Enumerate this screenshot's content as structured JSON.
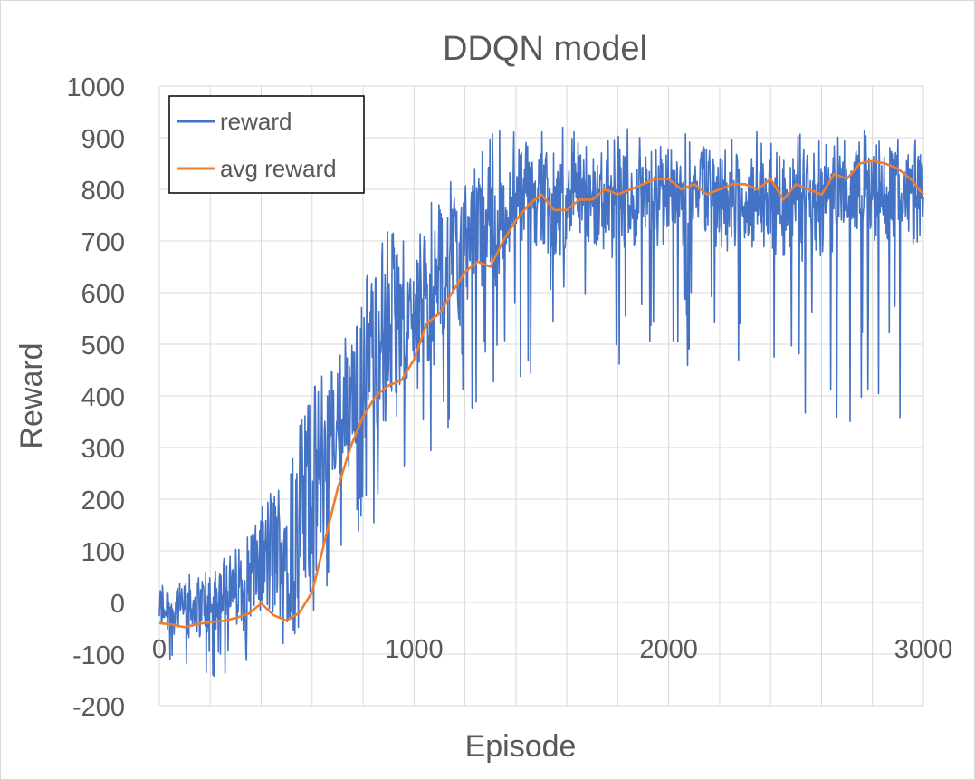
{
  "chart_data": {
    "type": "line",
    "title": "DDQN model",
    "xlabel": "Episode",
    "ylabel": "Reward",
    "xlim": [
      0,
      3000
    ],
    "ylim": [
      -200,
      1000
    ],
    "xticks": [
      0,
      1000,
      2000,
      3000
    ],
    "xtick_labels": [
      "0",
      "1000",
      "2000",
      "3000"
    ],
    "yticks": [
      -200,
      -100,
      0,
      100,
      200,
      300,
      400,
      500,
      600,
      700,
      800,
      900,
      1000
    ],
    "ytick_labels": [
      "-200",
      "-100",
      "0",
      "100",
      "200",
      "300",
      "400",
      "500",
      "600",
      "700",
      "800",
      "900",
      "1000"
    ],
    "grid": true,
    "legend_position": "top-left",
    "series": [
      {
        "name": "reward",
        "color": "#4472c4",
        "note_points": "noisy per-episode reward; envelope sampled every 100 episodes",
        "x": [
          0,
          100,
          200,
          300,
          400,
          500,
          600,
          700,
          800,
          900,
          1000,
          1100,
          1200,
          1300,
          1400,
          1500,
          1600,
          1700,
          1800,
          1900,
          2000,
          2100,
          2200,
          2300,
          2400,
          2500,
          2600,
          2700,
          2800,
          2900,
          3000
        ],
        "low": [
          -100,
          -150,
          -150,
          -140,
          -120,
          -80,
          -20,
          50,
          150,
          150,
          200,
          230,
          350,
          400,
          430,
          430,
          480,
          450,
          400,
          430,
          400,
          450,
          400,
          350,
          350,
          350,
          350,
          350,
          350,
          350,
          400
        ],
        "high": [
          40,
          50,
          70,
          100,
          180,
          260,
          400,
          480,
          620,
          720,
          720,
          800,
          870,
          900,
          910,
          910,
          910,
          910,
          910,
          910,
          910,
          910,
          910,
          910,
          910,
          910,
          910,
          910,
          920,
          920,
          930
        ]
      },
      {
        "name": "avg reward",
        "color": "#ed7d31",
        "x": [
          0,
          50,
          100,
          150,
          200,
          250,
          300,
          350,
          400,
          450,
          500,
          550,
          600,
          650,
          700,
          750,
          800,
          850,
          900,
          950,
          1000,
          1050,
          1100,
          1150,
          1200,
          1250,
          1300,
          1350,
          1400,
          1450,
          1500,
          1550,
          1600,
          1650,
          1700,
          1750,
          1800,
          1850,
          1900,
          1950,
          2000,
          2050,
          2100,
          2150,
          2200,
          2250,
          2300,
          2350,
          2400,
          2450,
          2500,
          2550,
          2600,
          2650,
          2700,
          2750,
          2800,
          2850,
          2900,
          2950,
          3000
        ],
        "values": [
          -40,
          -43,
          -48,
          -42,
          -38,
          -36,
          -30,
          -22,
          -2,
          -25,
          -35,
          -20,
          20,
          120,
          220,
          300,
          360,
          400,
          420,
          430,
          470,
          540,
          560,
          600,
          640,
          660,
          650,
          700,
          740,
          770,
          790,
          760,
          760,
          780,
          780,
          800,
          790,
          800,
          810,
          820,
          820,
          800,
          810,
          790,
          800,
          810,
          810,
          800,
          820,
          780,
          810,
          800,
          790,
          830,
          820,
          850,
          855,
          850,
          840,
          820,
          790
        ]
      }
    ]
  }
}
